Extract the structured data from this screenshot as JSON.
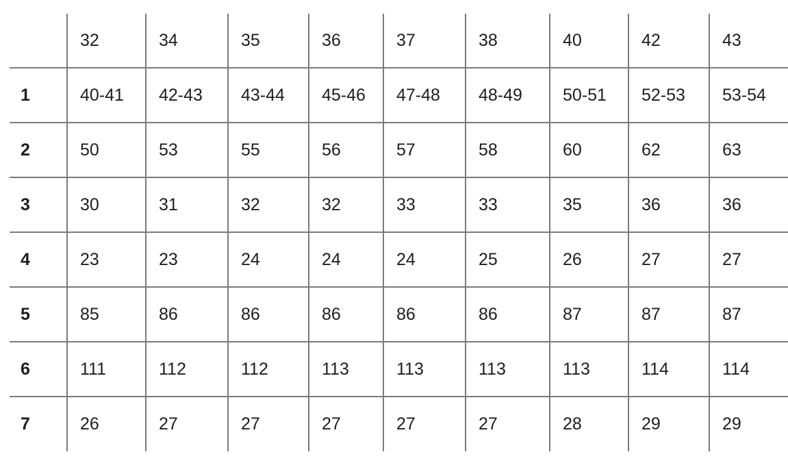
{
  "table": {
    "header": [
      "",
      "32",
      "34",
      "35",
      "36",
      "37",
      "38",
      "40",
      "42",
      "43"
    ],
    "rows": [
      [
        "1",
        "40-41",
        "42-43",
        "43-44",
        "45-46",
        "47-48",
        "48-49",
        "50-51",
        "52-53",
        "53-54"
      ],
      [
        "2",
        "50",
        "53",
        "55",
        "56",
        "57",
        "58",
        "60",
        "62",
        "63"
      ],
      [
        "3",
        "30",
        "31",
        "32",
        "32",
        "33",
        "33",
        "35",
        "36",
        "36"
      ],
      [
        "4",
        "23",
        "23",
        "24",
        "24",
        "24",
        "25",
        "26",
        "27",
        "27"
      ],
      [
        "5",
        "85",
        "86",
        "86",
        "86",
        "86",
        "86",
        "87",
        "87",
        "87"
      ],
      [
        "6",
        "111",
        "112",
        "112",
        "113",
        "113",
        "113",
        "113",
        "114",
        "114"
      ],
      [
        "7",
        "26",
        "27",
        "27",
        "27",
        "27",
        "27",
        "28",
        "29",
        "29"
      ]
    ]
  }
}
